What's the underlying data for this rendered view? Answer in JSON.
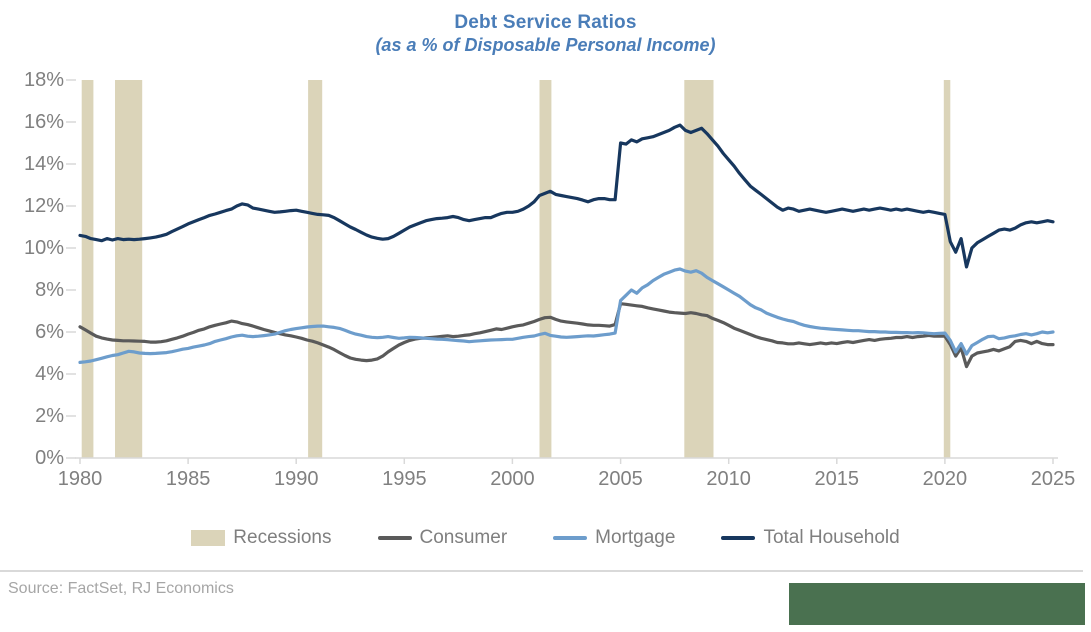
{
  "title": {
    "text": "Debt Service Ratios",
    "subtitle": "(as a % of Disposable Personal Income)",
    "color": "#4a7db8"
  },
  "source": {
    "text": "Source: FactSet, RJ Economics"
  },
  "branding": {
    "block_color": "#4a7150"
  },
  "legend": {
    "items": [
      {
        "label": "Recessions",
        "type": "box",
        "color": "#dbd4b9"
      },
      {
        "label": "Consumer",
        "type": "line",
        "color": "#5a5a5a"
      },
      {
        "label": "Mortgage",
        "type": "line",
        "color": "#6d9dcc"
      },
      {
        "label": "Total Household",
        "type": "line",
        "color": "#17375e"
      }
    ]
  },
  "chart_data": {
    "type": "line",
    "title": "Debt Service Ratios",
    "subtitle": "(as a % of Disposable Personal Income)",
    "xlabel": "",
    "ylabel": "",
    "x_start": 1980,
    "x_step": 0.25,
    "xlim": [
      1980,
      2025.3
    ],
    "ylim": [
      0,
      18
    ],
    "grid": false,
    "legend_position": "bottom",
    "yticks": [
      0,
      2,
      4,
      6,
      8,
      10,
      12,
      14,
      16,
      18
    ],
    "ytick_suffix": "%",
    "xticks": [
      1980,
      1985,
      1990,
      1995,
      2000,
      2005,
      2010,
      2015,
      2020,
      2025
    ],
    "axis_color": "#d9d9d9",
    "recession_color": "#dbd4b9",
    "recessions": [
      [
        1980.08,
        1980.62
      ],
      [
        1981.62,
        1982.88
      ],
      [
        1990.55,
        1991.2
      ],
      [
        2001.25,
        2001.8
      ],
      [
        2007.95,
        2009.3
      ],
      [
        2019.95,
        2020.25
      ]
    ],
    "series": [
      {
        "name": "Consumer",
        "color": "#5a5a5a",
        "values": [
          6.25,
          6.1,
          5.95,
          5.8,
          5.72,
          5.66,
          5.62,
          5.6,
          5.58,
          5.58,
          5.57,
          5.56,
          5.55,
          5.52,
          5.52,
          5.54,
          5.58,
          5.65,
          5.72,
          5.8,
          5.9,
          5.98,
          6.08,
          6.15,
          6.25,
          6.32,
          6.38,
          6.44,
          6.52,
          6.48,
          6.4,
          6.35,
          6.28,
          6.2,
          6.12,
          6.05,
          5.98,
          5.92,
          5.86,
          5.82,
          5.76,
          5.7,
          5.62,
          5.56,
          5.48,
          5.38,
          5.28,
          5.16,
          5.02,
          4.88,
          4.76,
          4.7,
          4.66,
          4.64,
          4.66,
          4.72,
          4.85,
          5.05,
          5.22,
          5.38,
          5.5,
          5.6,
          5.66,
          5.7,
          5.72,
          5.74,
          5.76,
          5.79,
          5.82,
          5.78,
          5.8,
          5.84,
          5.86,
          5.92,
          5.96,
          6.02,
          6.08,
          6.15,
          6.12,
          6.18,
          6.25,
          6.3,
          6.34,
          6.42,
          6.5,
          6.6,
          6.68,
          6.7,
          6.6,
          6.52,
          6.48,
          6.45,
          6.42,
          6.38,
          6.34,
          6.32,
          6.32,
          6.3,
          6.28,
          6.35,
          7.35,
          7.32,
          7.28,
          7.25,
          7.22,
          7.15,
          7.1,
          7.05,
          7.0,
          6.95,
          6.92,
          6.9,
          6.88,
          6.92,
          6.88,
          6.82,
          6.78,
          6.65,
          6.55,
          6.45,
          6.32,
          6.18,
          6.08,
          5.98,
          5.88,
          5.78,
          5.7,
          5.64,
          5.58,
          5.5,
          5.48,
          5.44,
          5.44,
          5.48,
          5.44,
          5.4,
          5.44,
          5.48,
          5.44,
          5.48,
          5.45,
          5.5,
          5.54,
          5.5,
          5.55,
          5.6,
          5.64,
          5.6,
          5.65,
          5.68,
          5.7,
          5.74,
          5.74,
          5.78,
          5.74,
          5.78,
          5.8,
          5.84,
          5.8,
          5.8,
          5.8,
          5.4,
          4.85,
          5.25,
          4.35,
          4.85,
          5.0,
          5.05,
          5.1,
          5.17,
          5.1,
          5.2,
          5.3,
          5.55,
          5.6,
          5.55,
          5.45,
          5.55,
          5.45,
          5.4,
          5.4
        ]
      },
      {
        "name": "Mortgage",
        "color": "#6d9dcc",
        "values": [
          4.55,
          4.58,
          4.62,
          4.68,
          4.75,
          4.82,
          4.88,
          4.92,
          5.0,
          5.08,
          5.05,
          5.0,
          4.98,
          4.97,
          4.98,
          5.0,
          5.02,
          5.06,
          5.12,
          5.18,
          5.22,
          5.28,
          5.33,
          5.38,
          5.45,
          5.55,
          5.62,
          5.68,
          5.76,
          5.82,
          5.85,
          5.8,
          5.78,
          5.8,
          5.83,
          5.86,
          5.9,
          5.98,
          6.06,
          6.12,
          6.16,
          6.2,
          6.24,
          6.26,
          6.28,
          6.28,
          6.25,
          6.22,
          6.17,
          6.08,
          5.98,
          5.9,
          5.85,
          5.78,
          5.75,
          5.73,
          5.75,
          5.78,
          5.74,
          5.7,
          5.72,
          5.75,
          5.74,
          5.72,
          5.7,
          5.68,
          5.66,
          5.65,
          5.64,
          5.61,
          5.59,
          5.57,
          5.54,
          5.56,
          5.58,
          5.6,
          5.62,
          5.63,
          5.64,
          5.65,
          5.65,
          5.7,
          5.75,
          5.78,
          5.81,
          5.88,
          5.94,
          5.84,
          5.8,
          5.76,
          5.75,
          5.76,
          5.78,
          5.8,
          5.82,
          5.81,
          5.84,
          5.87,
          5.9,
          5.95,
          7.5,
          7.75,
          8.0,
          7.85,
          8.1,
          8.25,
          8.45,
          8.6,
          8.75,
          8.85,
          8.95,
          9.0,
          8.9,
          8.85,
          8.92,
          8.8,
          8.6,
          8.45,
          8.3,
          8.15,
          8.0,
          7.85,
          7.7,
          7.5,
          7.3,
          7.15,
          7.05,
          6.9,
          6.8,
          6.7,
          6.62,
          6.55,
          6.5,
          6.4,
          6.32,
          6.26,
          6.22,
          6.18,
          6.16,
          6.14,
          6.12,
          6.1,
          6.08,
          6.06,
          6.06,
          6.04,
          6.02,
          6.02,
          6.0,
          6.0,
          5.98,
          5.98,
          5.97,
          5.97,
          5.96,
          5.97,
          5.96,
          5.94,
          5.92,
          5.94,
          5.95,
          5.6,
          5.05,
          5.45,
          4.95,
          5.35,
          5.5,
          5.65,
          5.78,
          5.8,
          5.68,
          5.72,
          5.78,
          5.82,
          5.88,
          5.92,
          5.86,
          5.92,
          6.0,
          5.96,
          6.0
        ]
      },
      {
        "name": "Total Household",
        "color": "#17375e",
        "values": [
          10.6,
          10.55,
          10.45,
          10.4,
          10.35,
          10.45,
          10.38,
          10.45,
          10.4,
          10.42,
          10.4,
          10.42,
          10.45,
          10.48,
          10.52,
          10.58,
          10.65,
          10.78,
          10.9,
          11.02,
          11.15,
          11.25,
          11.35,
          11.45,
          11.55,
          11.62,
          11.7,
          11.78,
          11.85,
          12.0,
          12.1,
          12.05,
          11.9,
          11.85,
          11.8,
          11.75,
          11.7,
          11.72,
          11.75,
          11.78,
          11.8,
          11.75,
          11.7,
          11.65,
          11.6,
          11.58,
          11.55,
          11.45,
          11.3,
          11.15,
          11.0,
          10.88,
          10.75,
          10.62,
          10.52,
          10.46,
          10.42,
          10.45,
          10.55,
          10.7,
          10.85,
          11.0,
          11.1,
          11.2,
          11.3,
          11.35,
          11.4,
          11.42,
          11.45,
          11.5,
          11.45,
          11.35,
          11.3,
          11.35,
          11.4,
          11.45,
          11.45,
          11.55,
          11.65,
          11.7,
          11.7,
          11.75,
          11.85,
          12.0,
          12.2,
          12.5,
          12.6,
          12.7,
          12.55,
          12.5,
          12.45,
          12.4,
          12.35,
          12.28,
          12.2,
          12.3,
          12.35,
          12.35,
          12.3,
          12.3,
          15.0,
          14.95,
          15.15,
          15.05,
          15.2,
          15.25,
          15.3,
          15.4,
          15.5,
          15.6,
          15.75,
          15.85,
          15.6,
          15.5,
          15.6,
          15.7,
          15.45,
          15.15,
          14.85,
          14.5,
          14.2,
          13.9,
          13.55,
          13.25,
          12.95,
          12.75,
          12.55,
          12.35,
          12.15,
          11.95,
          11.8,
          11.9,
          11.85,
          11.75,
          11.8,
          11.85,
          11.8,
          11.75,
          11.7,
          11.75,
          11.8,
          11.85,
          11.8,
          11.75,
          11.8,
          11.85,
          11.8,
          11.85,
          11.9,
          11.85,
          11.8,
          11.85,
          11.8,
          11.85,
          11.8,
          11.75,
          11.7,
          11.75,
          11.7,
          11.65,
          11.6,
          10.3,
          9.8,
          10.45,
          9.1,
          10.0,
          10.25,
          10.4,
          10.55,
          10.7,
          10.85,
          10.9,
          10.85,
          10.95,
          11.1,
          11.2,
          11.25,
          11.2,
          11.25,
          11.3,
          11.25
        ]
      }
    ]
  }
}
